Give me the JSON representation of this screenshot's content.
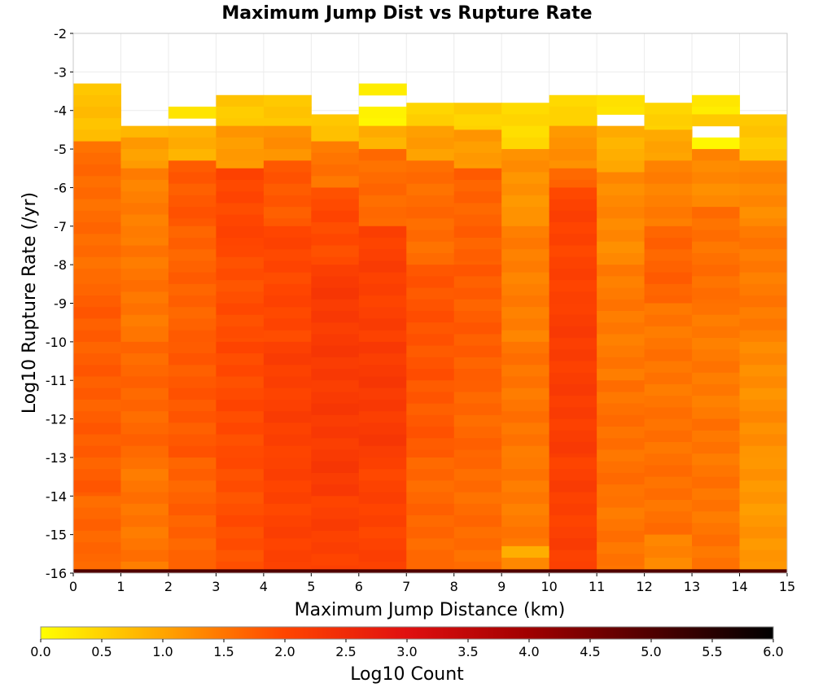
{
  "chart_data": {
    "type": "heatmap",
    "title": "Maximum Jump Dist vs Rupture Rate",
    "xlabel": "Maximum Jump Distance (km)",
    "ylabel": "Log10 Rupture Rate (/yr)",
    "colorbar_label": "Log10 Count",
    "xlim": [
      0,
      15
    ],
    "ylim": [
      -16,
      -2
    ],
    "x_ticks": [
      "0",
      "1",
      "2",
      "3",
      "4",
      "5",
      "6",
      "7",
      "8",
      "9",
      "10",
      "11",
      "12",
      "13",
      "14",
      "15"
    ],
    "y_ticks": [
      "-2",
      "-3",
      "-4",
      "-5",
      "-6",
      "-7",
      "-8",
      "-9",
      "-10",
      "-11",
      "-12",
      "-13",
      "-14",
      "-15",
      "-16"
    ],
    "colorbar_ticks": [
      "0.0",
      "0.5",
      "1.0",
      "1.5",
      "2.0",
      "2.5",
      "3.0",
      "3.5",
      "4.0",
      "4.5",
      "5.0",
      "5.5",
      "6.0"
    ],
    "colorbar_range": [
      0,
      6
    ],
    "colormap": [
      "#ffff00",
      "#ffa500",
      "#ff4500",
      "#e01010",
      "#a00000",
      "#500000",
      "#000000"
    ],
    "x_bin_width": 1,
    "y_bin_height": 0.3,
    "columns": [
      {
        "x0": 0,
        "top": -3.3,
        "segments": [
          [
            -3.3,
            -4.8,
            0.7
          ],
          [
            -4.8,
            -8.5,
            1.6
          ],
          [
            -8.5,
            -14,
            1.75
          ],
          [
            -14,
            -15.7,
            1.65
          ],
          [
            -15.7,
            -15.9,
            1.6
          ],
          [
            -15.9,
            -16,
            5.0
          ]
        ]
      },
      {
        "x0": 1,
        "top": -4.4,
        "segments": [
          [
            -4.4,
            -4.7,
            0.8
          ],
          [
            -4.7,
            -5.5,
            1.1
          ],
          [
            -5.5,
            -7.5,
            1.4
          ],
          [
            -7.5,
            -10,
            1.5
          ],
          [
            -10,
            -13,
            1.65
          ],
          [
            -13,
            -15.7,
            1.5
          ],
          [
            -15.7,
            -15.9,
            1.4
          ],
          [
            -15.9,
            -16,
            5.0
          ]
        ]
      },
      {
        "x0": 2,
        "top": -3.9,
        "segments": [
          [
            -3.9,
            -4.2,
            0.3
          ],
          [
            -4.4,
            -5.3,
            0.9
          ],
          [
            -5.3,
            -7,
            1.8
          ],
          [
            -7,
            -10,
            1.7
          ],
          [
            -10,
            -13,
            1.8
          ],
          [
            -13,
            -15.9,
            1.7
          ],
          [
            -15.9,
            -16,
            5.0
          ]
        ]
      },
      {
        "x0": 3,
        "top": -3.6,
        "segments": [
          [
            -3.6,
            -4.4,
            0.6
          ],
          [
            -4.4,
            -5.5,
            1.1
          ],
          [
            -5.5,
            -7.5,
            2.0
          ],
          [
            -7.5,
            -10,
            1.9
          ],
          [
            -10,
            -13,
            1.95
          ],
          [
            -13,
            -15.9,
            1.9
          ],
          [
            -15.9,
            -16,
            5.0
          ]
        ]
      },
      {
        "x0": 4,
        "top": -3.6,
        "segments": [
          [
            -3.6,
            -4.4,
            0.6
          ],
          [
            -4.4,
            -5.3,
            1.2
          ],
          [
            -5.3,
            -7,
            1.8
          ],
          [
            -7,
            -10,
            2.0
          ],
          [
            -10,
            -13,
            2.1
          ],
          [
            -13,
            -15.9,
            2.05
          ],
          [
            -15.9,
            -16,
            5.0
          ]
        ]
      },
      {
        "x0": 5,
        "top": -4.1,
        "segments": [
          [
            -4.1,
            -4.8,
            0.7
          ],
          [
            -4.8,
            -6,
            1.5
          ],
          [
            -6,
            -8,
            1.95
          ],
          [
            -8,
            -11,
            2.2
          ],
          [
            -11,
            -14,
            2.2
          ],
          [
            -14,
            -15.9,
            2.1
          ],
          [
            -15.9,
            -16,
            5.0
          ]
        ]
      },
      {
        "x0": 6,
        "top": -3.3,
        "segments": [
          [
            -3.3,
            -3.6,
            0.2
          ],
          [
            -3.9,
            -4.4,
            0.1
          ],
          [
            -4.4,
            -5,
            0.9
          ],
          [
            -5,
            -7,
            1.6
          ],
          [
            -7,
            -10,
            2.1
          ],
          [
            -10,
            -13,
            2.2
          ],
          [
            -13,
            -15.9,
            2.05
          ],
          [
            -15.9,
            -16,
            5.0
          ]
        ]
      },
      {
        "x0": 7,
        "top": -3.8,
        "segments": [
          [
            -3.8,
            -4.4,
            0.5
          ],
          [
            -4.4,
            -5.3,
            1.1
          ],
          [
            -5.3,
            -8,
            1.6
          ],
          [
            -8,
            -11,
            1.85
          ],
          [
            -11,
            -13,
            1.8
          ],
          [
            -13,
            -15.9,
            1.65
          ],
          [
            -15.9,
            -16,
            5.0
          ]
        ]
      },
      {
        "x0": 8,
        "top": -3.8,
        "segments": [
          [
            -3.8,
            -4.5,
            0.5
          ],
          [
            -4.5,
            -5.5,
            1.1
          ],
          [
            -5.5,
            -8,
            1.7
          ],
          [
            -8,
            -11,
            1.75
          ],
          [
            -11,
            -13,
            1.65
          ],
          [
            -13,
            -15.9,
            1.6
          ],
          [
            -15.9,
            -16,
            5.0
          ]
        ]
      },
      {
        "x0": 9,
        "top": -3.8,
        "segments": [
          [
            -3.8,
            -5,
            0.4
          ],
          [
            -5,
            -7,
            1.2
          ],
          [
            -7,
            -10,
            1.4
          ],
          [
            -10,
            -13,
            1.5
          ],
          [
            -13,
            -15.3,
            1.45
          ],
          [
            -15.3,
            -15.6,
            0.9
          ],
          [
            -15.6,
            -15.9,
            1.3
          ],
          [
            -15.9,
            -16,
            5.0
          ]
        ]
      },
      {
        "x0": 10,
        "top": -3.6,
        "segments": [
          [
            -3.6,
            -4.4,
            0.5
          ],
          [
            -4.4,
            -5.5,
            1.2
          ],
          [
            -5.5,
            -6,
            1.7
          ],
          [
            -6,
            -9,
            2.05
          ],
          [
            -9,
            -13,
            2.15
          ],
          [
            -13,
            -15.9,
            2.1
          ],
          [
            -15.9,
            -16,
            5.0
          ]
        ]
      },
      {
        "x0": 11,
        "top": -3.6,
        "segments": [
          [
            -3.6,
            -4.1,
            0.3
          ],
          [
            -4.4,
            -5.6,
            0.9
          ],
          [
            -5.6,
            -8,
            1.3
          ],
          [
            -8,
            -11,
            1.45
          ],
          [
            -11,
            -14,
            1.55
          ],
          [
            -14,
            -15.9,
            1.5
          ],
          [
            -15.9,
            -16,
            5.0
          ]
        ]
      },
      {
        "x0": 12,
        "top": -3.8,
        "segments": [
          [
            -3.8,
            -4.5,
            0.5
          ],
          [
            -4.5,
            -5.3,
            1.0
          ],
          [
            -5.3,
            -7,
            1.4
          ],
          [
            -7,
            -9,
            1.7
          ],
          [
            -9,
            -12,
            1.5
          ],
          [
            -12,
            -15,
            1.55
          ],
          [
            -15,
            -15.9,
            1.35
          ],
          [
            -15.9,
            -16,
            5.0
          ]
        ]
      },
      {
        "x0": 13,
        "top": -3.6,
        "segments": [
          [
            -3.6,
            -4.1,
            0.2
          ],
          [
            -4.1,
            -4.4,
            0.6
          ],
          [
            -4.7,
            -5,
            0.1
          ],
          [
            -5,
            -6.5,
            1.3
          ],
          [
            -6.5,
            -9,
            1.55
          ],
          [
            -9,
            -12,
            1.45
          ],
          [
            -12,
            -15.9,
            1.5
          ],
          [
            -15.9,
            -16,
            5.0
          ]
        ]
      },
      {
        "x0": 14,
        "top": -4.1,
        "segments": [
          [
            -4.1,
            -5.3,
            0.6
          ],
          [
            -5.3,
            -7,
            1.3
          ],
          [
            -7,
            -10,
            1.45
          ],
          [
            -10,
            -13,
            1.25
          ],
          [
            -13,
            -15.9,
            1.15
          ],
          [
            -15.9,
            -16,
            5.0
          ]
        ]
      }
    ]
  }
}
